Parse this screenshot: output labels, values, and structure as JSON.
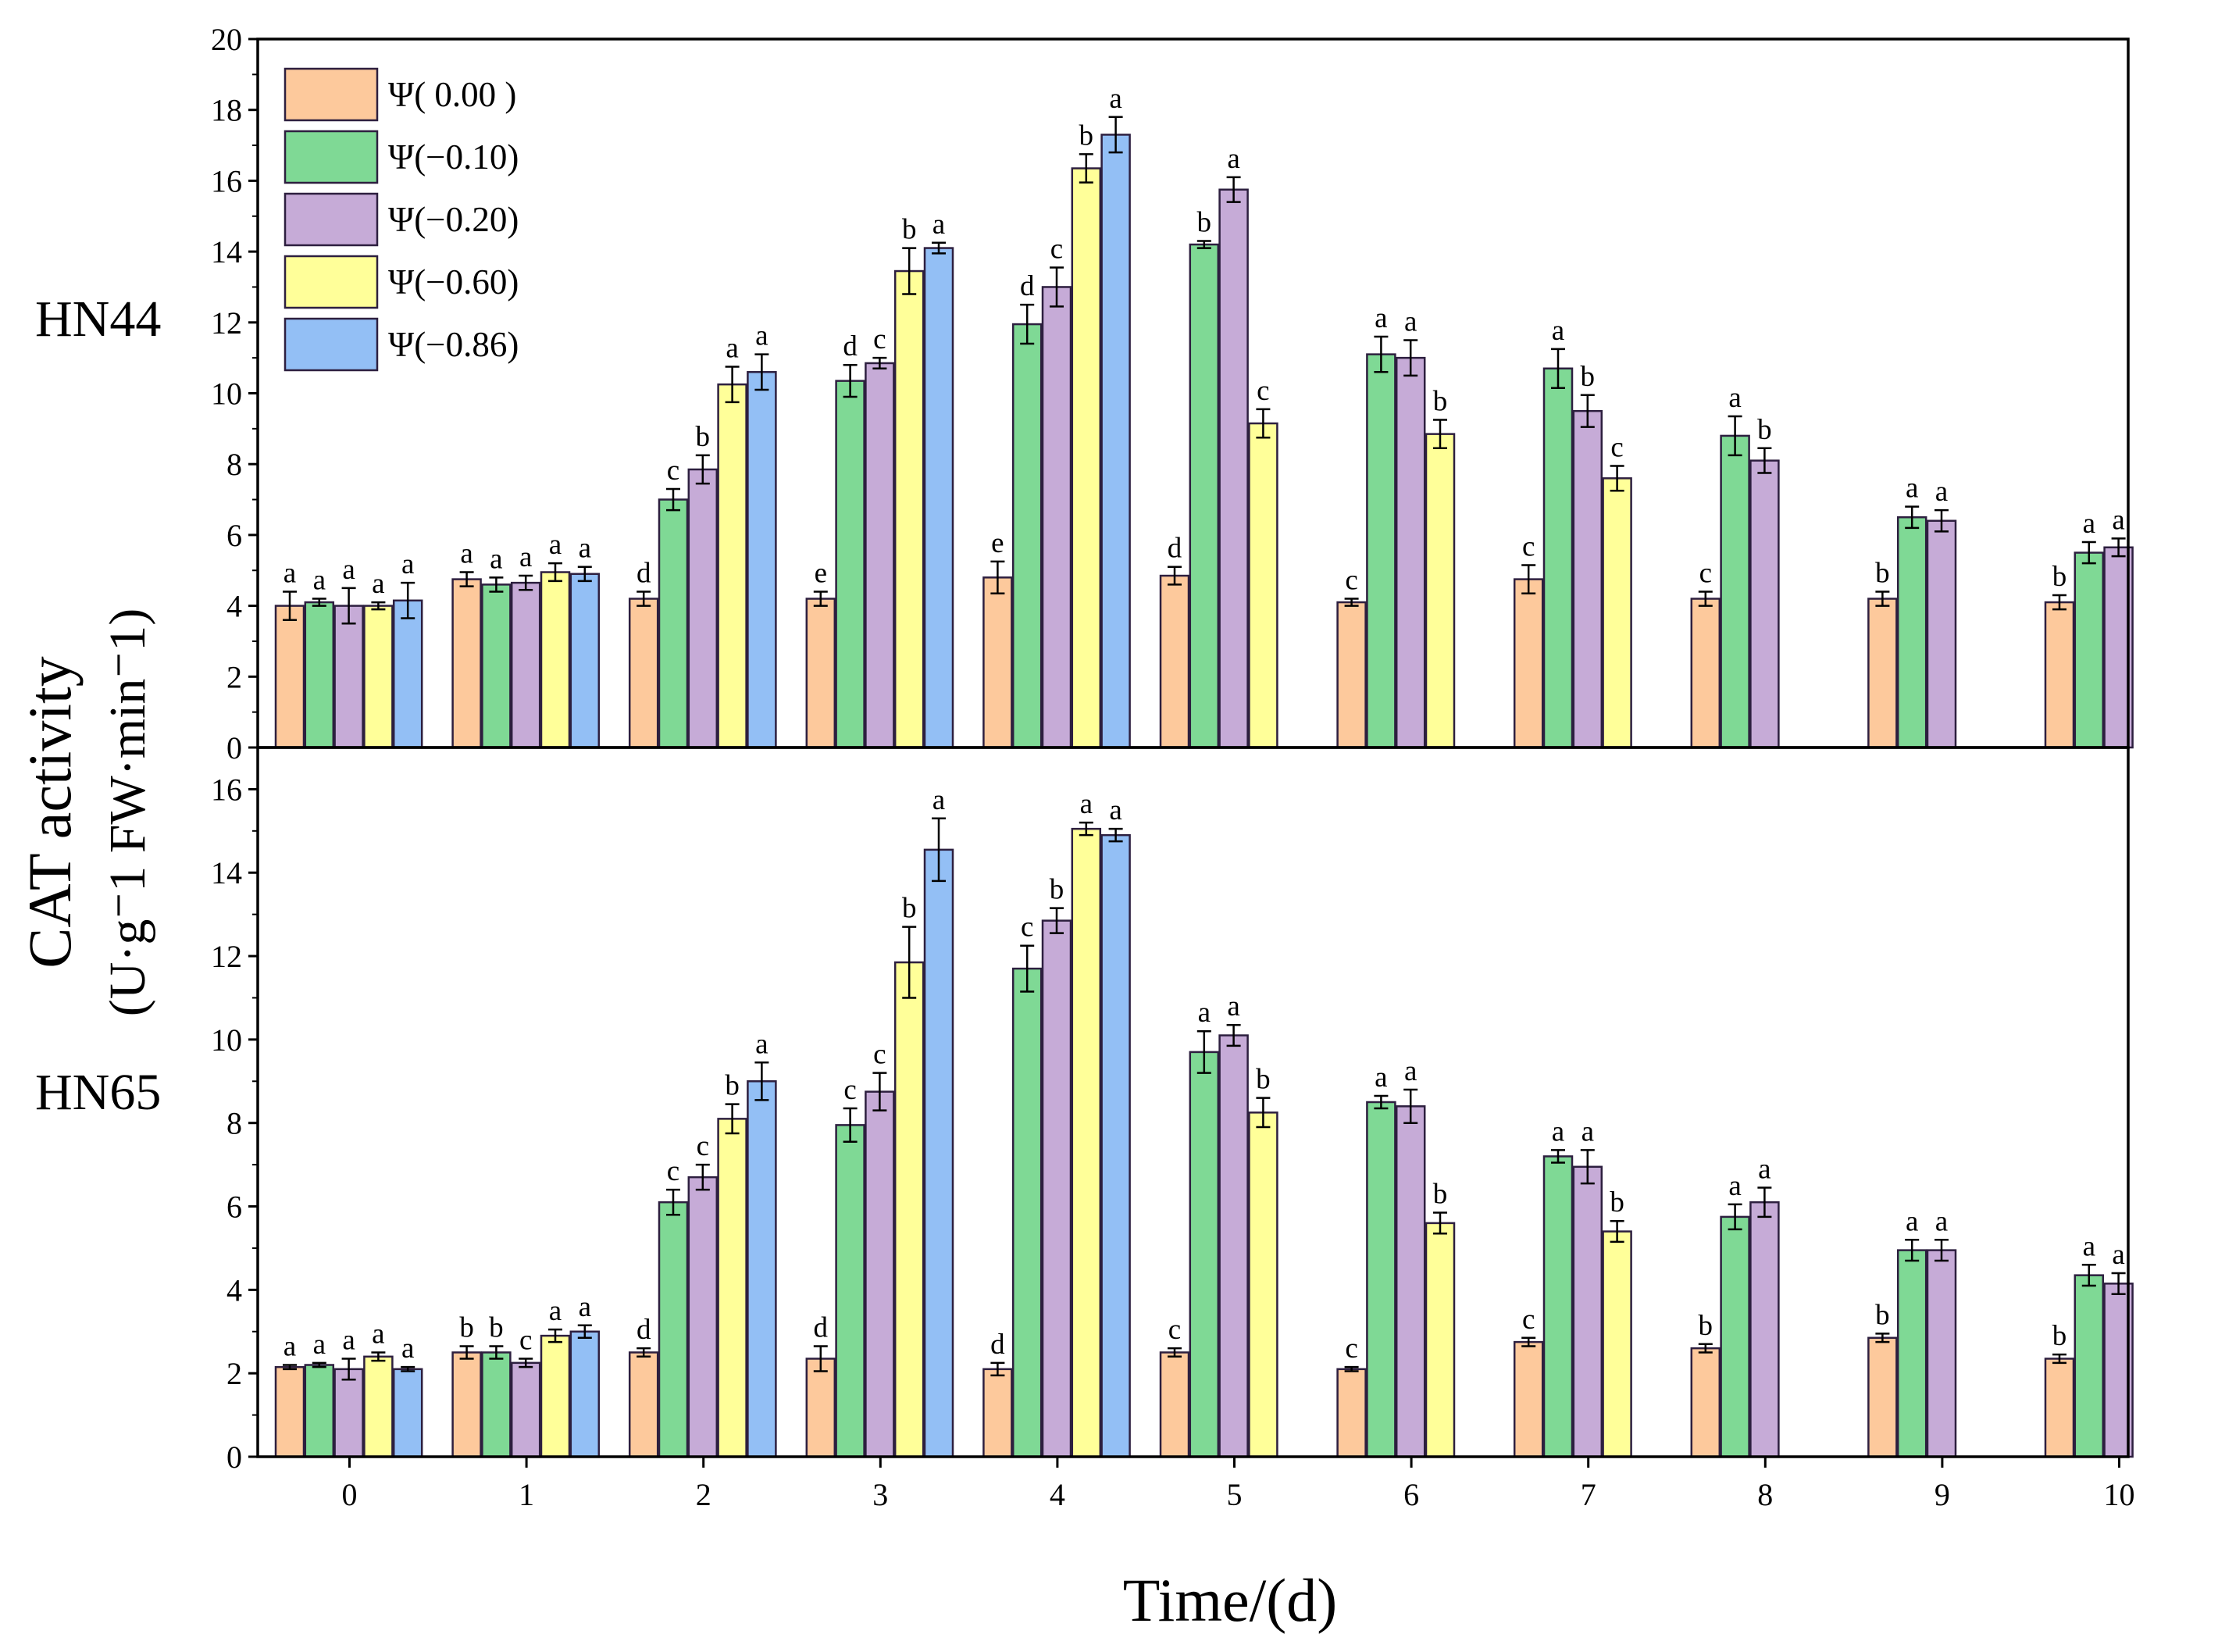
{
  "chart_data": {
    "type": "bar",
    "xlabel": "Time/(d)",
    "ylabel_line1": "CAT activity",
    "ylabel_line2": "(U·g⁻1 FW·min⁻1)",
    "categories": [
      "0",
      "1",
      "2",
      "3",
      "4",
      "5",
      "6",
      "7",
      "8",
      "9",
      "10"
    ],
    "legend": [
      {
        "name": "Ψ( 0.00 )",
        "color": "#FDC99C"
      },
      {
        "name": "Ψ(−0.10)",
        "color": "#7FD995"
      },
      {
        "name": "Ψ(−0.20)",
        "color": "#C6ABD7"
      },
      {
        "name": "Ψ(−0.60)",
        "color": "#FFFF99"
      },
      {
        "name": "Ψ(−0.86)",
        "color": "#93BFF5"
      }
    ],
    "panels": [
      {
        "label": "HN44",
        "ylim": [
          0,
          20
        ],
        "yticks": [
          0,
          2,
          4,
          6,
          8,
          10,
          12,
          14,
          16,
          18,
          20
        ],
        "series": [
          {
            "name": "Ψ( 0.00 )",
            "values": [
              4.0,
              4.75,
              4.2,
              4.2,
              4.8,
              4.85,
              4.1,
              4.75,
              4.2,
              4.2,
              4.1
            ],
            "errors": [
              0.4,
              0.2,
              0.2,
              0.2,
              0.45,
              0.25,
              0.1,
              0.4,
              0.2,
              0.2,
              0.2
            ],
            "letters": [
              "a",
              "a",
              "d",
              "e",
              "e",
              "d",
              "c",
              "c",
              "c",
              "b",
              "b"
            ]
          },
          {
            "name": "Ψ(−0.10)",
            "values": [
              4.1,
              4.6,
              7.0,
              10.35,
              11.95,
              14.2,
              11.1,
              10.7,
              8.8,
              6.5,
              5.5
            ],
            "errors": [
              0.1,
              0.2,
              0.3,
              0.45,
              0.55,
              0.1,
              0.5,
              0.55,
              0.55,
              0.3,
              0.3
            ],
            "letters": [
              "a",
              "a",
              "c",
              "d",
              "d",
              "b",
              "a",
              "a",
              "a",
              "a",
              "a"
            ]
          },
          {
            "name": "Ψ(−0.20)",
            "values": [
              4.0,
              4.65,
              7.85,
              10.85,
              13.0,
              15.75,
              11.0,
              9.5,
              8.1,
              6.4,
              5.65
            ],
            "errors": [
              0.5,
              0.2,
              0.4,
              0.15,
              0.55,
              0.35,
              0.5,
              0.45,
              0.35,
              0.3,
              0.25
            ],
            "letters": [
              "a",
              "a",
              "b",
              "c",
              "c",
              "a",
              "a",
              "b",
              "b",
              "a",
              "a"
            ]
          },
          {
            "name": "Ψ(−0.60)",
            "values": [
              4.0,
              4.95,
              10.25,
              13.45,
              16.35,
              9.15,
              8.85,
              7.6,
              null,
              null,
              null
            ],
            "errors": [
              0.1,
              0.25,
              0.5,
              0.65,
              0.4,
              0.4,
              0.4,
              0.35,
              null,
              null,
              null
            ],
            "letters": [
              "a",
              "a",
              "a",
              "b",
              "b",
              "c",
              "b",
              "c",
              null,
              null,
              null
            ]
          },
          {
            "name": "Ψ(−0.86)",
            "values": [
              4.15,
              4.9,
              10.6,
              14.1,
              17.3,
              null,
              null,
              null,
              null,
              null,
              null
            ],
            "errors": [
              0.5,
              0.2,
              0.5,
              0.15,
              0.5,
              null,
              null,
              null,
              null,
              null,
              null
            ],
            "letters": [
              "a",
              "a",
              "a",
              "a",
              "a",
              null,
              null,
              null,
              null,
              null,
              null
            ]
          }
        ]
      },
      {
        "label": "HN65",
        "ylim": [
          0,
          17
        ],
        "yticks": [
          0,
          2,
          4,
          6,
          8,
          10,
          12,
          14,
          16
        ],
        "series": [
          {
            "name": "Ψ( 0.00 )",
            "values": [
              2.15,
              2.5,
              2.5,
              2.35,
              2.1,
              2.5,
              2.1,
              2.75,
              2.6,
              2.85,
              2.35
            ],
            "errors": [
              0.05,
              0.15,
              0.1,
              0.3,
              0.15,
              0.1,
              0.05,
              0.1,
              0.1,
              0.1,
              0.1
            ],
            "letters": [
              "a",
              "b",
              "d",
              "d",
              "d",
              "c",
              "c",
              "c",
              "b",
              "b",
              "b"
            ]
          },
          {
            "name": "Ψ(−0.10)",
            "values": [
              2.2,
              2.5,
              6.1,
              7.95,
              11.7,
              9.7,
              8.5,
              7.2,
              5.75,
              4.95,
              4.35
            ],
            "errors": [
              0.05,
              0.15,
              0.3,
              0.4,
              0.55,
              0.5,
              0.15,
              0.15,
              0.3,
              0.25,
              0.25
            ],
            "letters": [
              "a",
              "b",
              "c",
              "c",
              "c",
              "a",
              "a",
              "a",
              "a",
              "a",
              "a"
            ]
          },
          {
            "name": "Ψ(−0.20)",
            "values": [
              2.1,
              2.25,
              6.7,
              8.75,
              12.85,
              10.1,
              8.4,
              6.95,
              6.1,
              4.95,
              4.15
            ],
            "errors": [
              0.25,
              0.1,
              0.3,
              0.45,
              0.3,
              0.25,
              0.4,
              0.4,
              0.35,
              0.25,
              0.25
            ],
            "letters": [
              "a",
              "c",
              "c",
              "c",
              "b",
              "a",
              "a",
              "a",
              "a",
              "a",
              "a"
            ]
          },
          {
            "name": "Ψ(−0.60)",
            "values": [
              2.4,
              2.9,
              8.1,
              11.85,
              15.05,
              8.25,
              5.6,
              5.4,
              null,
              null,
              null
            ],
            "errors": [
              0.1,
              0.15,
              0.35,
              0.85,
              0.15,
              0.35,
              0.25,
              0.25,
              null,
              null,
              null
            ],
            "letters": [
              "a",
              "a",
              "b",
              "b",
              "a",
              "b",
              "b",
              "b",
              null,
              null,
              null
            ]
          },
          {
            "name": "Ψ(−0.86)",
            "values": [
              2.1,
              3.0,
              9.0,
              14.55,
              14.9,
              null,
              null,
              null,
              null,
              null,
              null
            ],
            "errors": [
              0.05,
              0.15,
              0.45,
              0.75,
              0.15,
              null,
              null,
              null,
              null,
              null,
              null
            ],
            "letters": [
              "a",
              "a",
              "a",
              "a",
              "a",
              null,
              null,
              null,
              null,
              null,
              null
            ]
          }
        ]
      }
    ]
  }
}
